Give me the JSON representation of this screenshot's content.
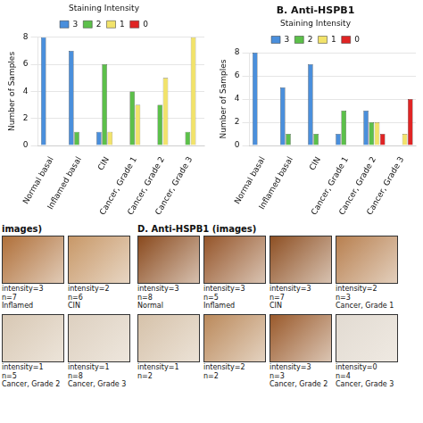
{
  "chart_data": [
    {
      "type": "bar",
      "categories": [
        "Normal basal",
        "Inflamed basal",
        "CIN",
        "Cancer, Grade 1",
        "Cancer, Grade 2",
        "Cancer, Grade 3"
      ],
      "series": [
        {
          "name": "3",
          "color": "#4a8fdc",
          "values": [
            8,
            7,
            1,
            0,
            0,
            0
          ]
        },
        {
          "name": "2",
          "color": "#5cc04a",
          "values": [
            0,
            1,
            6,
            4,
            3,
            1
          ]
        },
        {
          "name": "1",
          "color": "#f2e36a",
          "values": [
            0,
            0,
            1,
            3,
            5,
            8
          ]
        },
        {
          "name": "0",
          "color": "#e02424",
          "values": [
            0,
            0,
            0,
            0,
            0,
            0
          ]
        }
      ],
      "ylim": [
        0,
        8
      ],
      "yticks": [
        0,
        2,
        4,
        6,
        8
      ],
      "y_label": "Number of Samples",
      "legend_title": "Staining Intensity",
      "legend": "top",
      "grid": true
    },
    {
      "type": "bar",
      "title": "B. Anti-HSPB1",
      "categories": [
        "Normal basal",
        "Inflamed basal",
        "CIN",
        "Cancer, Grade 1",
        "Cancer, Grade 2",
        "Cancer, Grade 3"
      ],
      "series": [
        {
          "name": "3",
          "color": "#4a8fdc",
          "values": [
            8,
            5,
            7,
            1,
            3,
            0
          ]
        },
        {
          "name": "2",
          "color": "#5cc04a",
          "values": [
            0,
            1,
            1,
            3,
            2,
            0
          ]
        },
        {
          "name": "1",
          "color": "#f2e36a",
          "values": [
            0,
            0,
            0,
            0,
            2,
            1
          ]
        },
        {
          "name": "0",
          "color": "#e02424",
          "values": [
            0,
            0,
            0,
            0,
            1,
            4
          ]
        }
      ],
      "ylim": [
        0,
        8
      ],
      "yticks": [
        0,
        2,
        4,
        6,
        8
      ],
      "y_label": "Number of Samples",
      "legend_title": "Staining Intensity",
      "legend": "top",
      "grid": true
    }
  ],
  "image_panels": [
    {
      "title": "images)",
      "rows": [
        [
          {
            "caption": [
              "intensity=3",
              "n=7"
            ],
            "label": "Inflamed",
            "color": "#b0703a"
          },
          {
            "caption": [
              "intensity=2",
              "n=6"
            ],
            "label": "CIN",
            "color": "#c89868"
          }
        ],
        [
          {
            "caption": [
              "intensity=1",
              "n=5"
            ],
            "label": "Cancer, Grade 2",
            "color": "#d8c8b4"
          },
          {
            "caption": [
              "intensity=1",
              "n=8"
            ],
            "label": "Cancer, Grade 3",
            "color": "#ddd0c0"
          }
        ]
      ]
    },
    {
      "title": "D. Anti-HSPB1 (images)",
      "rows": [
        [
          {
            "caption": [
              "intensity=3",
              "n=8"
            ],
            "label": "Normal",
            "color": "#8a4a1e"
          },
          {
            "caption": [
              "intensity=3",
              "n=5"
            ],
            "label": "Inflamed",
            "color": "#95552a"
          },
          {
            "caption": [
              "intensity=3",
              "n=7"
            ],
            "label": "CIN",
            "color": "#8e5024"
          },
          {
            "caption": [
              "intensity=2",
              "n=3"
            ],
            "label": "Cancer, Grade 1",
            "color": "#b88050"
          }
        ],
        [
          {
            "caption": [
              "intensity=1",
              "n=2"
            ],
            "color": "#d6c2aa"
          },
          {
            "caption": [
              "intensity=2",
              "n=2"
            ],
            "color": "#bb8a5c"
          },
          {
            "caption": [
              "intensity=3",
              "n=3"
            ],
            "label": "Cancer, Grade 2",
            "color": "#9a5a2c"
          },
          {
            "caption": [
              "intensity=0",
              "n=4"
            ],
            "label": "Cancer, Grade 3",
            "color": "#e2dbd2"
          }
        ]
      ]
    }
  ]
}
